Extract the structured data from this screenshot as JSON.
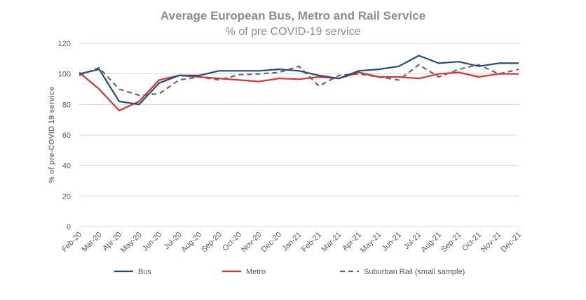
{
  "chart_data": {
    "type": "line",
    "title": "Average European Bus, Metro and Rail Service",
    "subtitle": "% of pre COVID-19 service",
    "xlabel": "",
    "ylabel": "% of pre-COVID 19 service",
    "ylim": [
      0,
      120
    ],
    "yticks": [
      0,
      20,
      40,
      60,
      80,
      100,
      120
    ],
    "grid": true,
    "legend_position": "bottom",
    "categories": [
      "Feb-20",
      "Mar-20",
      "Apr-20",
      "May-20",
      "Jun-20",
      "Jul-20",
      "Aug-20",
      "Sep-20",
      "Oct-20",
      "Nov-20",
      "Dec-20",
      "Jan-21",
      "Feb-21",
      "Mar-21",
      "Apr-21",
      "May-21",
      "Jun-21",
      "Jul-21",
      "Aug-21",
      "Sep-21",
      "Oct-21",
      "Nov-21",
      "Dec-21"
    ],
    "series": [
      {
        "name": "Bus",
        "color": "#1f4e79",
        "dash": "solid",
        "values": [
          100,
          103,
          82,
          80,
          94,
          99,
          99,
          102,
          102,
          102,
          103,
          102,
          99,
          97,
          102,
          103,
          105,
          112,
          107,
          108,
          105,
          107,
          107
        ]
      },
      {
        "name": "Metro",
        "color": "#e0302f",
        "dash": "solid",
        "values": [
          101,
          90,
          76,
          82,
          96,
          99,
          98,
          97,
          96,
          95,
          97,
          96.5,
          98,
          97,
          101,
          98,
          98,
          97,
          100,
          101,
          98,
          100,
          100
        ]
      },
      {
        "name": "Suburban Rail (small sample)",
        "color": "#666666",
        "dash": "dashed",
        "values": [
          99,
          104,
          90,
          86,
          87,
          96,
          98,
          96,
          99.5,
          100,
          101,
          105,
          92,
          99,
          100,
          98,
          96,
          106,
          98,
          103,
          106,
          100,
          103
        ]
      }
    ]
  }
}
